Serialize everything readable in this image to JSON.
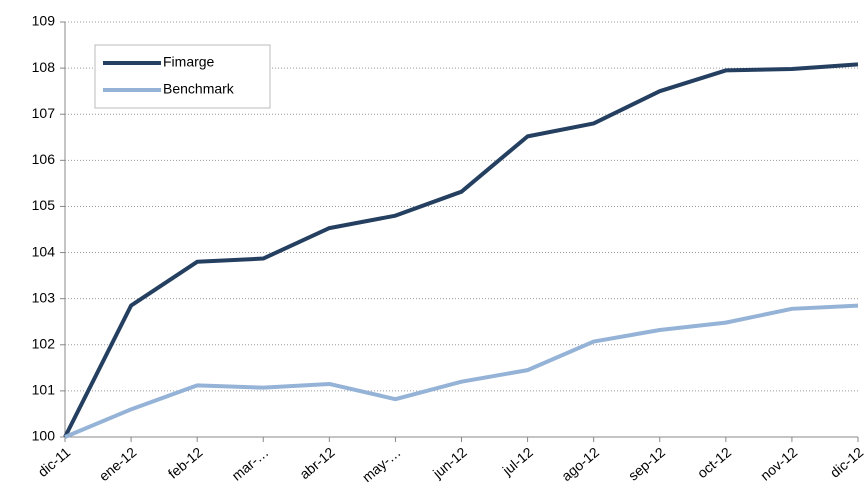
{
  "chart_data": {
    "type": "line",
    "categories": [
      "dic-11",
      "ene-12",
      "feb-12",
      "mar-…",
      "abr-12",
      "may-…",
      "jun-12",
      "jul-12",
      "ago-12",
      "sep-12",
      "oct-12",
      "nov-12",
      "dic-12"
    ],
    "series": [
      {
        "name": "Fimarge",
        "color": "#243f60",
        "values": [
          100,
          102.85,
          103.8,
          103.87,
          104.53,
          104.8,
          105.32,
          106.52,
          106.8,
          107.5,
          107.95,
          107.98,
          108.08
        ]
      },
      {
        "name": "Benchmark",
        "color": "#95b3d7",
        "values": [
          100,
          100.6,
          101.12,
          101.07,
          101.15,
          100.82,
          101.2,
          101.45,
          102.07,
          102.32,
          102.48,
          102.78,
          102.85
        ]
      }
    ],
    "ylim": [
      100,
      109
    ],
    "yticks": [
      100,
      101,
      102,
      103,
      104,
      105,
      106,
      107,
      108,
      109
    ],
    "grid": true,
    "legend": "upper left"
  }
}
